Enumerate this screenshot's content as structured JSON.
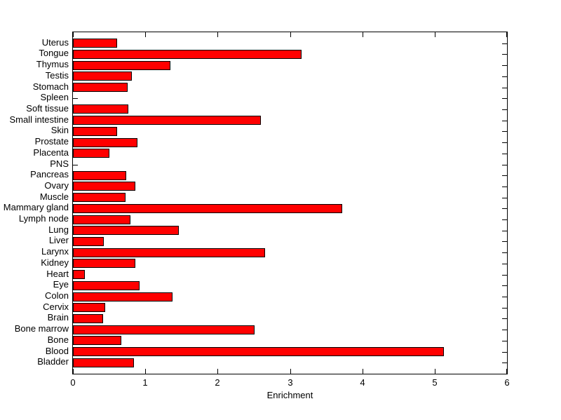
{
  "figure": {
    "background": "#FFFFFF"
  },
  "chart_data": {
    "type": "bar",
    "orientation": "horizontal",
    "title": "",
    "xlabel": "Enrichment",
    "ylabel": "",
    "xlim": [
      0,
      6
    ],
    "xticks": [
      0,
      1,
      2,
      3,
      4,
      5,
      6
    ],
    "grid": false,
    "legend": null,
    "category_order": "top-to-bottom",
    "categories": [
      "Uterus",
      "Tongue",
      "Thymus",
      "Testis",
      "Stomach",
      "Spleen",
      "Soft tissue",
      "Small intestine",
      "Skin",
      "Prostate",
      "Placenta",
      "PNS",
      "Pancreas",
      "Ovary",
      "Muscle",
      "Mammary gland",
      "Lymph node",
      "Lung",
      "Liver",
      "Larynx",
      "Kidney",
      "Heart",
      "Eye",
      "Colon",
      "Cervix",
      "Brain",
      "Bone marrow",
      "Bone",
      "Blood",
      "Bladder"
    ],
    "values": [
      0.61,
      3.16,
      1.35,
      0.81,
      0.76,
      0,
      0.77,
      2.6,
      0.61,
      0.89,
      0.5,
      0,
      0.74,
      0.86,
      0.73,
      3.72,
      0.79,
      1.46,
      0.43,
      2.66,
      0.86,
      0.16,
      0.92,
      1.38,
      0.45,
      0.42,
      2.51,
      0.67,
      5.13,
      0.84
    ],
    "bar_color": "#FF0000",
    "bar_edge_color": "#000000",
    "axis_color": "#000000"
  }
}
